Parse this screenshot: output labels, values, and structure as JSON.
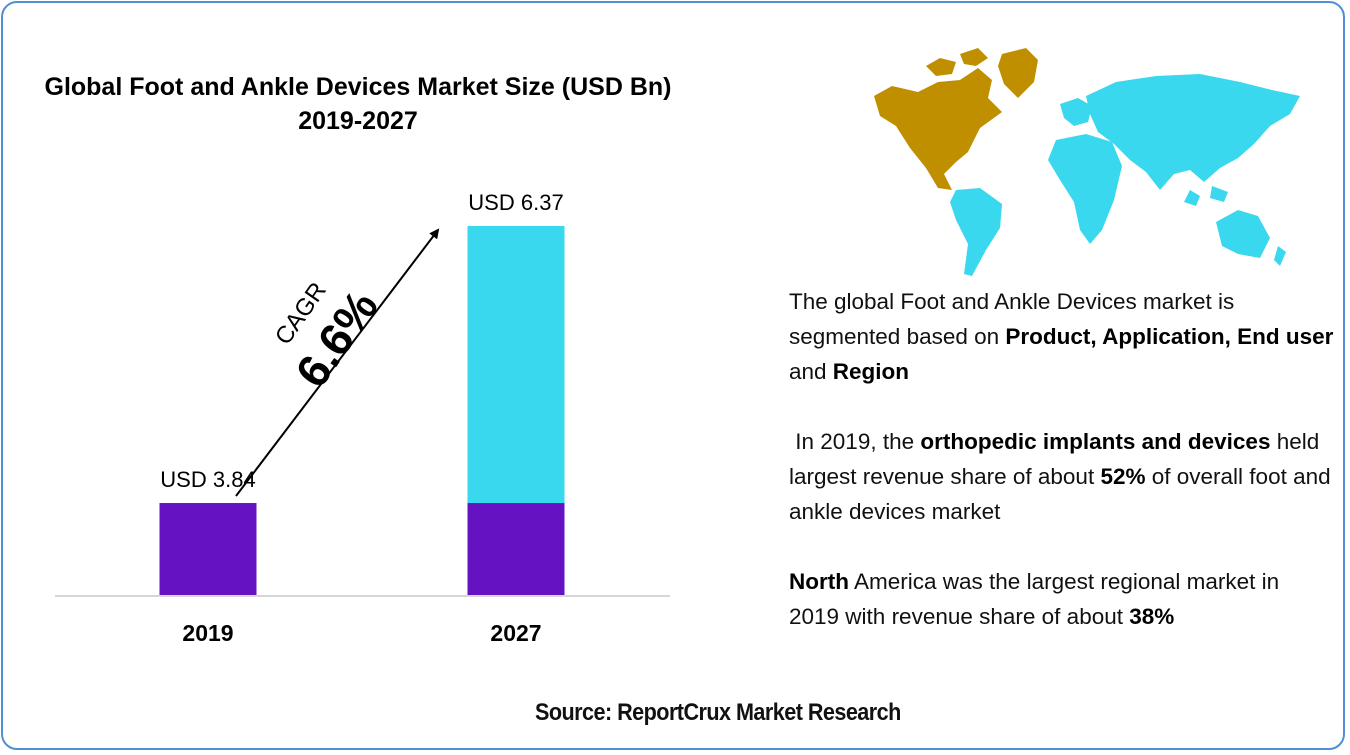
{
  "chart_data": {
    "type": "bar",
    "title": "Global Foot and Ankle Devices Market Size (USD Bn) 2019-2027",
    "categories": [
      "2019",
      "2027"
    ],
    "values": [
      3.84,
      6.37
    ],
    "data_labels": [
      "USD 3.84",
      "USD 6.37"
    ],
    "ylim": [
      3.0,
      6.6
    ],
    "grid": false,
    "annotation": {
      "label": "CAGR",
      "value": "6.6%"
    },
    "colors": {
      "base": "#6512c3",
      "growth": "#3ad8ee",
      "axis": "#c8c8c8"
    }
  },
  "map": {
    "icon": "world-map-icon",
    "colors": {
      "north_america": "#bf8f00",
      "rest_of_world": "#3ad8ee"
    }
  },
  "info": {
    "p1": {
      "t1": "The global Foot and Ankle Devices market is segmented based on ",
      "b1": "Product, Application, End user",
      "t2": " and ",
      "b2": "Region"
    },
    "p2": {
      "t1": "In 2019, the ",
      "b1": "orthopedic implants and devices",
      "t2": " held largest revenue share of about ",
      "b2": "52%",
      "t3": " of overall foot and ankle devices market"
    },
    "p3": {
      "b1": "North",
      "t1": " America was the largest regional market in 2019 with revenue share of about ",
      "b2": "38%"
    }
  },
  "source": "Source: ReportCrux Market Research"
}
